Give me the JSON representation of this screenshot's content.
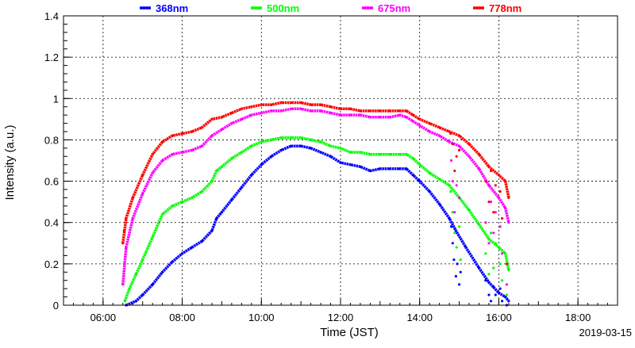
{
  "chart_data": {
    "type": "scatter",
    "xlabel": "Time (JST)",
    "ylabel": "Intensity (a.u.)",
    "date_label": "2019-03-15",
    "xlim": [
      "05:00",
      "19:00"
    ],
    "ylim": [
      0,
      1.4
    ],
    "grid": true,
    "legend_position": "top",
    "x_ticks": [
      "06:00",
      "08:00",
      "10:00",
      "12:00",
      "14:00",
      "16:00",
      "18:00"
    ],
    "y_ticks": [
      "0",
      "0.2",
      "0.4",
      "0.6",
      "0.8",
      "1",
      "1.2",
      "1.4"
    ],
    "series": [
      {
        "name": "368nm",
        "color": "#0000ff",
        "points": [
          [
            "06:35",
            0.0
          ],
          [
            "06:50",
            0.02
          ],
          [
            "07:00",
            0.05
          ],
          [
            "07:15",
            0.1
          ],
          [
            "07:30",
            0.16
          ],
          [
            "07:45",
            0.21
          ],
          [
            "08:00",
            0.25
          ],
          [
            "08:15",
            0.28
          ],
          [
            "08:30",
            0.31
          ],
          [
            "08:45",
            0.36
          ],
          [
            "08:52",
            0.42
          ],
          [
            "09:00",
            0.45
          ],
          [
            "09:15",
            0.51
          ],
          [
            "09:30",
            0.57
          ],
          [
            "09:45",
            0.63
          ],
          [
            "10:00",
            0.68
          ],
          [
            "10:15",
            0.72
          ],
          [
            "10:30",
            0.75
          ],
          [
            "10:45",
            0.77
          ],
          [
            "11:00",
            0.77
          ],
          [
            "11:15",
            0.76
          ],
          [
            "11:30",
            0.74
          ],
          [
            "11:45",
            0.72
          ],
          [
            "12:00",
            0.69
          ],
          [
            "12:15",
            0.68
          ],
          [
            "12:30",
            0.67
          ],
          [
            "12:45",
            0.65
          ],
          [
            "13:00",
            0.66
          ],
          [
            "13:15",
            0.66
          ],
          [
            "13:30",
            0.66
          ],
          [
            "13:40",
            0.66
          ],
          [
            "13:50",
            0.63
          ],
          [
            "14:00",
            0.6
          ],
          [
            "14:15",
            0.55
          ],
          [
            "14:30",
            0.49
          ],
          [
            "14:45",
            0.42
          ],
          [
            "14:55",
            0.36
          ],
          [
            "15:10",
            0.28
          ],
          [
            "15:30",
            0.18
          ],
          [
            "15:45",
            0.11
          ],
          [
            "16:00",
            0.06
          ],
          [
            "16:10",
            0.04
          ],
          [
            "16:15",
            0.02
          ]
        ],
        "scatter_points": [
          [
            "14:48",
            0.38
          ],
          [
            "14:50",
            0.3
          ],
          [
            "14:52",
            0.22
          ],
          [
            "14:55",
            0.14
          ],
          [
            "14:57",
            0.2
          ],
          [
            "15:00",
            0.1
          ],
          [
            "15:02",
            0.16
          ],
          [
            "15:40",
            0.12
          ],
          [
            "15:45",
            0.05
          ],
          [
            "15:48",
            0.02
          ],
          [
            "15:52",
            0.09
          ],
          [
            "15:55",
            0.05
          ],
          [
            "16:02",
            0.08
          ],
          [
            "16:05",
            0.02
          ],
          [
            "16:12",
            0.0
          ]
        ]
      },
      {
        "name": "500nm",
        "color": "#00ff00",
        "points": [
          [
            "06:33",
            0.02
          ],
          [
            "06:40",
            0.08
          ],
          [
            "06:50",
            0.15
          ],
          [
            "07:00",
            0.22
          ],
          [
            "07:15",
            0.33
          ],
          [
            "07:30",
            0.44
          ],
          [
            "07:45",
            0.48
          ],
          [
            "08:00",
            0.5
          ],
          [
            "08:15",
            0.52
          ],
          [
            "08:30",
            0.55
          ],
          [
            "08:45",
            0.6
          ],
          [
            "08:52",
            0.65
          ],
          [
            "09:00",
            0.67
          ],
          [
            "09:15",
            0.71
          ],
          [
            "09:30",
            0.74
          ],
          [
            "09:45",
            0.77
          ],
          [
            "10:00",
            0.79
          ],
          [
            "10:15",
            0.8
          ],
          [
            "10:30",
            0.81
          ],
          [
            "10:45",
            0.81
          ],
          [
            "11:00",
            0.81
          ],
          [
            "11:15",
            0.8
          ],
          [
            "11:30",
            0.79
          ],
          [
            "11:45",
            0.77
          ],
          [
            "12:00",
            0.76
          ],
          [
            "12:15",
            0.74
          ],
          [
            "12:30",
            0.74
          ],
          [
            "12:45",
            0.73
          ],
          [
            "13:00",
            0.73
          ],
          [
            "13:15",
            0.73
          ],
          [
            "13:30",
            0.73
          ],
          [
            "13:40",
            0.73
          ],
          [
            "13:50",
            0.71
          ],
          [
            "14:00",
            0.68
          ],
          [
            "14:15",
            0.64
          ],
          [
            "14:30",
            0.61
          ],
          [
            "14:45",
            0.58
          ],
          [
            "15:00",
            0.52
          ],
          [
            "15:15",
            0.46
          ],
          [
            "15:30",
            0.39
          ],
          [
            "15:45",
            0.32
          ],
          [
            "16:00",
            0.28
          ],
          [
            "16:10",
            0.25
          ],
          [
            "16:15",
            0.17
          ]
        ],
        "scatter_points": [
          [
            "14:47",
            0.55
          ],
          [
            "14:50",
            0.45
          ],
          [
            "14:53",
            0.35
          ],
          [
            "14:56",
            0.28
          ],
          [
            "15:00",
            0.38
          ],
          [
            "15:02",
            0.22
          ],
          [
            "15:40",
            0.25
          ],
          [
            "15:45",
            0.15
          ],
          [
            "15:48",
            0.35
          ],
          [
            "15:52",
            0.18
          ],
          [
            "15:55",
            0.3
          ],
          [
            "16:02",
            0.2
          ],
          [
            "16:05",
            0.12
          ],
          [
            "16:12",
            0.05
          ]
        ]
      },
      {
        "name": "675nm",
        "color": "#ff00ff",
        "points": [
          [
            "06:30",
            0.1
          ],
          [
            "06:35",
            0.28
          ],
          [
            "06:45",
            0.42
          ],
          [
            "07:00",
            0.54
          ],
          [
            "07:15",
            0.64
          ],
          [
            "07:30",
            0.7
          ],
          [
            "07:45",
            0.73
          ],
          [
            "08:00",
            0.74
          ],
          [
            "08:15",
            0.75
          ],
          [
            "08:30",
            0.77
          ],
          [
            "08:45",
            0.82
          ],
          [
            "09:00",
            0.85
          ],
          [
            "09:15",
            0.88
          ],
          [
            "09:30",
            0.9
          ],
          [
            "09:45",
            0.92
          ],
          [
            "10:00",
            0.93
          ],
          [
            "10:15",
            0.94
          ],
          [
            "10:30",
            0.94
          ],
          [
            "10:45",
            0.95
          ],
          [
            "11:00",
            0.95
          ],
          [
            "11:15",
            0.94
          ],
          [
            "11:30",
            0.94
          ],
          [
            "11:45",
            0.93
          ],
          [
            "12:00",
            0.92
          ],
          [
            "12:15",
            0.92
          ],
          [
            "12:30",
            0.92
          ],
          [
            "12:45",
            0.91
          ],
          [
            "13:00",
            0.91
          ],
          [
            "13:15",
            0.91
          ],
          [
            "13:30",
            0.92
          ],
          [
            "13:40",
            0.91
          ],
          [
            "13:50",
            0.89
          ],
          [
            "14:00",
            0.87
          ],
          [
            "14:15",
            0.84
          ],
          [
            "14:30",
            0.82
          ],
          [
            "14:45",
            0.79
          ],
          [
            "15:00",
            0.77
          ],
          [
            "15:15",
            0.72
          ],
          [
            "15:30",
            0.66
          ],
          [
            "15:45",
            0.58
          ],
          [
            "16:00",
            0.52
          ],
          [
            "16:10",
            0.47
          ],
          [
            "16:15",
            0.4
          ]
        ],
        "scatter_points": [
          [
            "06:32",
            0.2
          ],
          [
            "14:48",
            0.7
          ],
          [
            "14:50",
            0.6
          ],
          [
            "14:53",
            0.45
          ],
          [
            "14:56",
            0.58
          ],
          [
            "15:00",
            0.52
          ],
          [
            "15:40",
            0.4
          ],
          [
            "15:45",
            0.3
          ],
          [
            "15:48",
            0.5
          ],
          [
            "15:52",
            0.35
          ],
          [
            "15:55",
            0.45
          ],
          [
            "16:02",
            0.38
          ],
          [
            "16:05",
            0.25
          ],
          [
            "16:12",
            0.1
          ]
        ]
      },
      {
        "name": "778nm",
        "color": "#ff0000",
        "points": [
          [
            "06:30",
            0.3
          ],
          [
            "06:35",
            0.42
          ],
          [
            "06:45",
            0.52
          ],
          [
            "07:00",
            0.63
          ],
          [
            "07:15",
            0.73
          ],
          [
            "07:30",
            0.79
          ],
          [
            "07:45",
            0.82
          ],
          [
            "08:00",
            0.83
          ],
          [
            "08:15",
            0.84
          ],
          [
            "08:30",
            0.86
          ],
          [
            "08:45",
            0.9
          ],
          [
            "09:00",
            0.91
          ],
          [
            "09:15",
            0.93
          ],
          [
            "09:30",
            0.95
          ],
          [
            "09:45",
            0.96
          ],
          [
            "10:00",
            0.97
          ],
          [
            "10:15",
            0.97
          ],
          [
            "10:30",
            0.98
          ],
          [
            "10:45",
            0.98
          ],
          [
            "11:00",
            0.98
          ],
          [
            "11:15",
            0.97
          ],
          [
            "11:30",
            0.97
          ],
          [
            "11:45",
            0.96
          ],
          [
            "12:00",
            0.95
          ],
          [
            "12:15",
            0.95
          ],
          [
            "12:30",
            0.94
          ],
          [
            "12:45",
            0.94
          ],
          [
            "13:00",
            0.94
          ],
          [
            "13:15",
            0.94
          ],
          [
            "13:30",
            0.94
          ],
          [
            "13:40",
            0.94
          ],
          [
            "13:50",
            0.92
          ],
          [
            "14:00",
            0.9
          ],
          [
            "14:15",
            0.88
          ],
          [
            "14:30",
            0.86
          ],
          [
            "14:45",
            0.84
          ],
          [
            "15:00",
            0.82
          ],
          [
            "15:15",
            0.78
          ],
          [
            "15:30",
            0.73
          ],
          [
            "15:45",
            0.67
          ],
          [
            "16:00",
            0.63
          ],
          [
            "16:10",
            0.6
          ],
          [
            "16:15",
            0.52
          ]
        ],
        "scatter_points": [
          [
            "06:32",
            0.36
          ],
          [
            "14:47",
            0.83
          ],
          [
            "14:50",
            0.78
          ],
          [
            "14:53",
            0.65
          ],
          [
            "14:56",
            0.72
          ],
          [
            "15:00",
            0.75
          ],
          [
            "15:40",
            0.6
          ],
          [
            "15:45",
            0.5
          ],
          [
            "15:48",
            0.65
          ],
          [
            "15:52",
            0.45
          ],
          [
            "15:55",
            0.58
          ],
          [
            "16:02",
            0.55
          ],
          [
            "16:05",
            0.42
          ],
          [
            "16:12",
            0.2
          ]
        ]
      }
    ]
  }
}
